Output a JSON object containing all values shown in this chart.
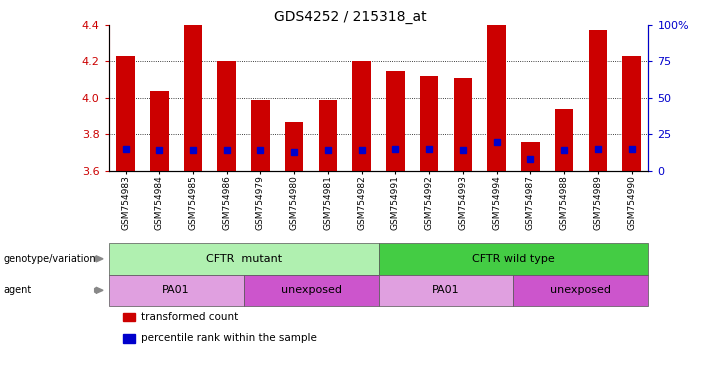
{
  "title": "GDS4252 / 215318_at",
  "samples": [
    "GSM754983",
    "GSM754984",
    "GSM754985",
    "GSM754986",
    "GSM754979",
    "GSM754980",
    "GSM754981",
    "GSM754982",
    "GSM754991",
    "GSM754992",
    "GSM754993",
    "GSM754994",
    "GSM754987",
    "GSM754988",
    "GSM754989",
    "GSM754990"
  ],
  "transformed_counts": [
    4.23,
    4.04,
    4.4,
    4.2,
    3.99,
    3.87,
    3.99,
    4.2,
    4.15,
    4.12,
    4.11,
    4.4,
    3.76,
    3.94,
    4.37,
    4.23
  ],
  "percentile_ranks": [
    15,
    14,
    14,
    14,
    14,
    13,
    14,
    14,
    15,
    15,
    14,
    20,
    8,
    14,
    15,
    15
  ],
  "bar_color": "#cc0000",
  "blue_color": "#0000cc",
  "ylim_left": [
    3.6,
    4.4
  ],
  "ylim_right": [
    0,
    100
  ],
  "right_ticks": [
    0,
    25,
    50,
    75,
    100
  ],
  "right_tick_labels": [
    "0",
    "25",
    "50",
    "75",
    "100%"
  ],
  "left_ticks": [
    3.6,
    3.8,
    4.0,
    4.2,
    4.4
  ],
  "genotype_groups": [
    {
      "label": "CFTR  mutant",
      "start": 0,
      "end": 8,
      "color": "#b0f0b0"
    },
    {
      "label": "CFTR wild type",
      "start": 8,
      "end": 16,
      "color": "#44cc44"
    }
  ],
  "agent_groups": [
    {
      "label": "PA01",
      "start": 0,
      "end": 4,
      "color": "#e0a0e0"
    },
    {
      "label": "unexposed",
      "start": 4,
      "end": 8,
      "color": "#cc55cc"
    },
    {
      "label": "PA01",
      "start": 8,
      "end": 12,
      "color": "#e0a0e0"
    },
    {
      "label": "unexposed",
      "start": 12,
      "end": 16,
      "color": "#cc55cc"
    }
  ],
  "legend_items": [
    {
      "color": "#cc0000",
      "label": "transformed count"
    },
    {
      "color": "#0000cc",
      "label": "percentile rank within the sample"
    }
  ],
  "background_color": "#ffffff",
  "tick_label_color_left": "#cc0000",
  "tick_label_color_right": "#0000cc"
}
